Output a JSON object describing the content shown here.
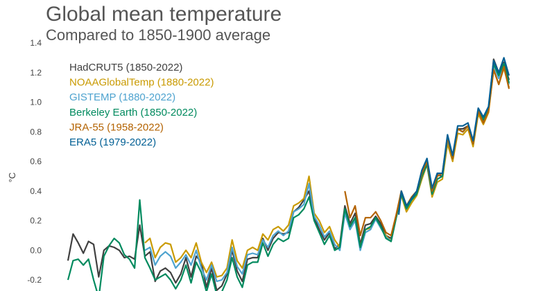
{
  "chart_data": {
    "type": "line",
    "title": "Global mean temperature",
    "subtitle": "Compared to 1850-1900 average",
    "ylabel": "°C",
    "xlim": [
      1850,
      2022
    ],
    "ylim": [
      -0.2,
      1.4
    ],
    "yticks": [
      "-0.2",
      "0.0",
      "0.2",
      "0.4",
      "0.6",
      "0.8",
      "1.0",
      "1.2",
      "1.4"
    ],
    "grid": false,
    "legend_position": "top-left",
    "series": [
      {
        "name": "HadCRUT5 (1850-2022)",
        "color": "#404040",
        "x": [
          1850,
          1852,
          1854,
          1856,
          1858,
          1860,
          1862,
          1864,
          1866,
          1868,
          1870,
          1872,
          1874,
          1876,
          1878,
          1880,
          1882,
          1884,
          1886,
          1888,
          1890,
          1892,
          1894,
          1896,
          1898,
          1900,
          1902,
          1904,
          1906,
          1908,
          1910,
          1912,
          1914,
          1916,
          1918,
          1920,
          1922,
          1924,
          1926,
          1928,
          1930,
          1932,
          1934,
          1936,
          1938,
          1940,
          1942,
          1944,
          1946,
          1948,
          1950,
          1952,
          1954,
          1956,
          1958,
          1960,
          1962,
          1964,
          1966,
          1968,
          1970,
          1972,
          1974,
          1976,
          1978,
          1980,
          1982,
          1984,
          1986,
          1988,
          1990,
          1992,
          1994,
          1996,
          1998,
          2000,
          2002,
          2004,
          2006,
          2008,
          2010,
          2012,
          2014,
          2016,
          2018,
          2020,
          2022
        ],
        "values": [
          -0.07,
          0.11,
          0.05,
          -0.02,
          0.06,
          0.04,
          -0.18,
          0.0,
          0.03,
          0.02,
          0.0,
          -0.05,
          -0.04,
          -0.06,
          0.17,
          -0.04,
          -0.01,
          -0.21,
          -0.14,
          -0.12,
          -0.15,
          -0.22,
          -0.16,
          -0.05,
          -0.18,
          -0.04,
          -0.08,
          -0.25,
          -0.12,
          -0.27,
          -0.24,
          -0.16,
          0.0,
          -0.14,
          -0.21,
          -0.06,
          -0.05,
          -0.05,
          0.08,
          0.0,
          0.08,
          0.12,
          0.11,
          0.12,
          0.26,
          0.29,
          0.34,
          0.4,
          0.22,
          0.14,
          0.07,
          0.12,
          0.01,
          0.04,
          0.3,
          0.18,
          0.25,
          0.04,
          0.17,
          0.18,
          0.23,
          0.18,
          0.1,
          0.08,
          0.23,
          0.4,
          0.3,
          0.35,
          0.38,
          0.5,
          0.59,
          0.4,
          0.51,
          0.5,
          0.77,
          0.61,
          0.82,
          0.82,
          0.84,
          0.72,
          0.95,
          0.88,
          0.94,
          1.29,
          1.2,
          1.27,
          1.15
        ]
      },
      {
        "name": "NOAAGlobalTemp (1880-2022)",
        "color": "#c99a00",
        "x": [
          1880,
          1882,
          1884,
          1886,
          1888,
          1890,
          1892,
          1894,
          1896,
          1898,
          1900,
          1902,
          1904,
          1906,
          1908,
          1910,
          1912,
          1914,
          1916,
          1918,
          1920,
          1922,
          1924,
          1926,
          1928,
          1930,
          1932,
          1934,
          1936,
          1938,
          1940,
          1942,
          1944,
          1946,
          1948,
          1950,
          1952,
          1954,
          1956,
          1958,
          1960,
          1962,
          1964,
          1966,
          1968,
          1970,
          1972,
          1974,
          1976,
          1978,
          1980,
          1982,
          1984,
          1986,
          1988,
          1990,
          1992,
          1994,
          1996,
          1998,
          2000,
          2002,
          2004,
          2006,
          2008,
          2010,
          2012,
          2014,
          2016,
          2018,
          2020,
          2022
        ],
        "values": [
          0.05,
          0.08,
          -0.05,
          0.02,
          0.05,
          0.04,
          -0.08,
          -0.05,
          0.0,
          -0.05,
          0.05,
          -0.08,
          -0.15,
          -0.08,
          -0.18,
          -0.17,
          -0.12,
          0.07,
          -0.07,
          -0.12,
          0.0,
          0.02,
          0.0,
          0.11,
          0.07,
          0.14,
          0.16,
          0.13,
          0.17,
          0.3,
          0.32,
          0.35,
          0.5,
          0.25,
          0.2,
          0.12,
          0.16,
          0.07,
          0.02,
          0.27,
          0.16,
          0.22,
          0.02,
          0.14,
          0.15,
          0.22,
          0.15,
          0.1,
          0.06,
          0.22,
          0.37,
          0.26,
          0.32,
          0.37,
          0.48,
          0.58,
          0.36,
          0.46,
          0.48,
          0.72,
          0.6,
          0.79,
          0.78,
          0.82,
          0.7,
          0.92,
          0.85,
          0.93,
          1.22,
          1.12,
          1.23,
          1.1
        ]
      },
      {
        "name": "GISTEMP (1880-2022)",
        "color": "#4ea3cf",
        "x": [
          1880,
          1882,
          1884,
          1886,
          1888,
          1890,
          1892,
          1894,
          1896,
          1898,
          1900,
          1902,
          1904,
          1906,
          1908,
          1910,
          1912,
          1914,
          1916,
          1918,
          1920,
          1922,
          1924,
          1926,
          1928,
          1930,
          1932,
          1934,
          1936,
          1938,
          1940,
          1942,
          1944,
          1946,
          1948,
          1950,
          1952,
          1954,
          1956,
          1958,
          1960,
          1962,
          1964,
          1966,
          1968,
          1970,
          1972,
          1974,
          1976,
          1978,
          1980,
          1982,
          1984,
          1986,
          1988,
          1990,
          1992,
          1994,
          1996,
          1998,
          2000,
          2002,
          2004,
          2006,
          2008,
          2010,
          2012,
          2014,
          2016,
          2018,
          2020,
          2022
        ],
        "values": [
          0.0,
          0.02,
          -0.1,
          -0.04,
          -0.01,
          -0.04,
          -0.12,
          -0.08,
          -0.03,
          -0.1,
          0.0,
          -0.12,
          -0.2,
          -0.1,
          -0.21,
          -0.2,
          -0.15,
          0.02,
          -0.11,
          -0.16,
          -0.03,
          -0.02,
          -0.03,
          0.07,
          0.02,
          0.1,
          0.13,
          0.1,
          0.13,
          0.26,
          0.28,
          0.31,
          0.45,
          0.23,
          0.17,
          0.09,
          0.13,
          0.04,
          0.0,
          0.25,
          0.14,
          0.2,
          0.0,
          0.12,
          0.14,
          0.21,
          0.15,
          0.09,
          0.06,
          0.22,
          0.38,
          0.28,
          0.34,
          0.38,
          0.5,
          0.58,
          0.38,
          0.48,
          0.5,
          0.75,
          0.62,
          0.82,
          0.8,
          0.84,
          0.72,
          0.94,
          0.87,
          0.95,
          1.25,
          1.16,
          1.26,
          1.12
        ]
      },
      {
        "name": "Berkeley Earth (1850-2022)",
        "color": "#008a5e",
        "x": [
          1850,
          1852,
          1854,
          1856,
          1858,
          1860,
          1862,
          1864,
          1866,
          1868,
          1870,
          1872,
          1874,
          1876,
          1878,
          1880,
          1882,
          1884,
          1886,
          1888,
          1890,
          1892,
          1894,
          1896,
          1898,
          1900,
          1902,
          1904,
          1906,
          1908,
          1910,
          1912,
          1914,
          1916,
          1918,
          1920,
          1922,
          1924,
          1926,
          1928,
          1930,
          1932,
          1934,
          1936,
          1938,
          1940,
          1942,
          1944,
          1946,
          1948,
          1950,
          1952,
          1954,
          1956,
          1958,
          1960,
          1962,
          1964,
          1966,
          1968,
          1970,
          1972,
          1974,
          1976,
          1978,
          1980,
          1982,
          1984,
          1986,
          1988,
          1990,
          1992,
          1994,
          1996,
          1998,
          2000,
          2002,
          2004,
          2006,
          2008,
          2010,
          2012,
          2014,
          2016,
          2018,
          2020,
          2022
        ],
        "values": [
          -0.2,
          -0.07,
          -0.06,
          -0.1,
          -0.06,
          -0.2,
          -0.32,
          -0.04,
          0.03,
          0.08,
          0.05,
          -0.03,
          -0.06,
          -0.12,
          0.34,
          -0.05,
          -0.12,
          -0.2,
          -0.18,
          -0.16,
          -0.2,
          -0.26,
          -0.2,
          -0.1,
          -0.22,
          -0.08,
          -0.15,
          -0.28,
          -0.16,
          -0.3,
          -0.28,
          -0.2,
          -0.05,
          -0.18,
          -0.25,
          -0.1,
          -0.08,
          -0.08,
          0.05,
          -0.04,
          0.04,
          0.08,
          0.06,
          0.08,
          0.22,
          0.24,
          0.28,
          0.36,
          0.2,
          0.12,
          0.04,
          0.1,
          0.0,
          0.02,
          0.28,
          0.16,
          0.22,
          0.02,
          0.14,
          0.16,
          0.22,
          0.16,
          0.08,
          0.06,
          0.22,
          0.38,
          0.28,
          0.34,
          0.38,
          0.5,
          0.58,
          0.38,
          0.48,
          0.5,
          0.76,
          0.62,
          0.82,
          0.8,
          0.84,
          0.72,
          0.94,
          0.88,
          0.95,
          1.26,
          1.18,
          1.26,
          1.13
        ]
      },
      {
        "name": "JRA-55 (1958-2022)",
        "color": "#b36200",
        "x": [
          1958,
          1960,
          1962,
          1964,
          1966,
          1968,
          1970,
          1972,
          1974,
          1976,
          1978,
          1980,
          1982,
          1984,
          1986,
          1988,
          1990,
          1992,
          1994,
          1996,
          1998,
          2000,
          2002,
          2004,
          2006,
          2008,
          2010,
          2012,
          2014,
          2016,
          2018,
          2020,
          2022
        ],
        "values": [
          0.4,
          0.22,
          0.3,
          0.1,
          0.22,
          0.22,
          0.26,
          0.2,
          0.12,
          0.1,
          0.24,
          0.4,
          0.3,
          0.36,
          0.4,
          0.52,
          0.6,
          0.4,
          0.5,
          0.52,
          0.76,
          0.62,
          0.82,
          0.8,
          0.84,
          0.72,
          0.94,
          0.86,
          0.94,
          1.22,
          1.12,
          1.24,
          1.09
        ]
      },
      {
        "name": "ERA5 (1979-2022)",
        "color": "#005f94",
        "x": [
          1979,
          1980,
          1982,
          1984,
          1986,
          1988,
          1990,
          1992,
          1994,
          1996,
          1998,
          2000,
          2002,
          2004,
          2006,
          2008,
          2010,
          2012,
          2014,
          2016,
          2018,
          2020,
          2022
        ],
        "values": [
          0.24,
          0.4,
          0.3,
          0.35,
          0.4,
          0.54,
          0.62,
          0.42,
          0.52,
          0.52,
          0.78,
          0.64,
          0.84,
          0.84,
          0.86,
          0.74,
          0.96,
          0.9,
          0.97,
          1.28,
          1.2,
          1.3,
          1.18
        ]
      }
    ]
  }
}
